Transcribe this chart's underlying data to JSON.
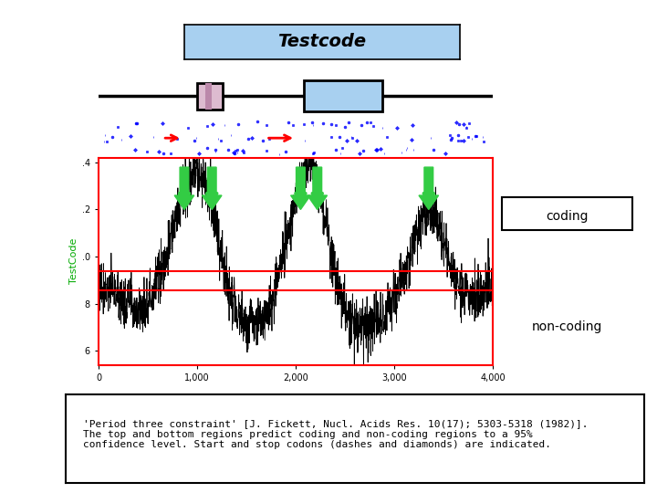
{
  "title": "Testcode",
  "title_bg": "#a8d0f0",
  "title_fontsize": 14,
  "coding_label": "coding",
  "noncoding_label": "non-coding",
  "bg_color": "#ffffff",
  "line_color": "#000000",
  "red_line1_y": -0.06,
  "red_line2_y": -0.145,
  "ylabel": "TestCode",
  "ylabel_color": "#00aa00",
  "xlim": [
    0,
    4000
  ],
  "ylim": [
    -0.46,
    0.42
  ],
  "xticks": [
    0,
    1000,
    2000,
    3000,
    4000
  ],
  "arrow_color": "#33cc44",
  "gene_bar_color": "#a8d0f0",
  "gene_bar2_color": "#dd99bb",
  "arrow_x_positions": [
    870,
    1150,
    2050,
    2220,
    3350
  ],
  "caption_line1": "'Period three constraint' [J. Fickett, Nucl. Acids Res. 10(17); 5303-5318 (1982)].",
  "caption_line2": "The top and bottom regions predict coding and non-coding regions to a 95%",
  "caption_line3": "confidence level. Start and stop codons (dashes and diamonds) are indicated."
}
